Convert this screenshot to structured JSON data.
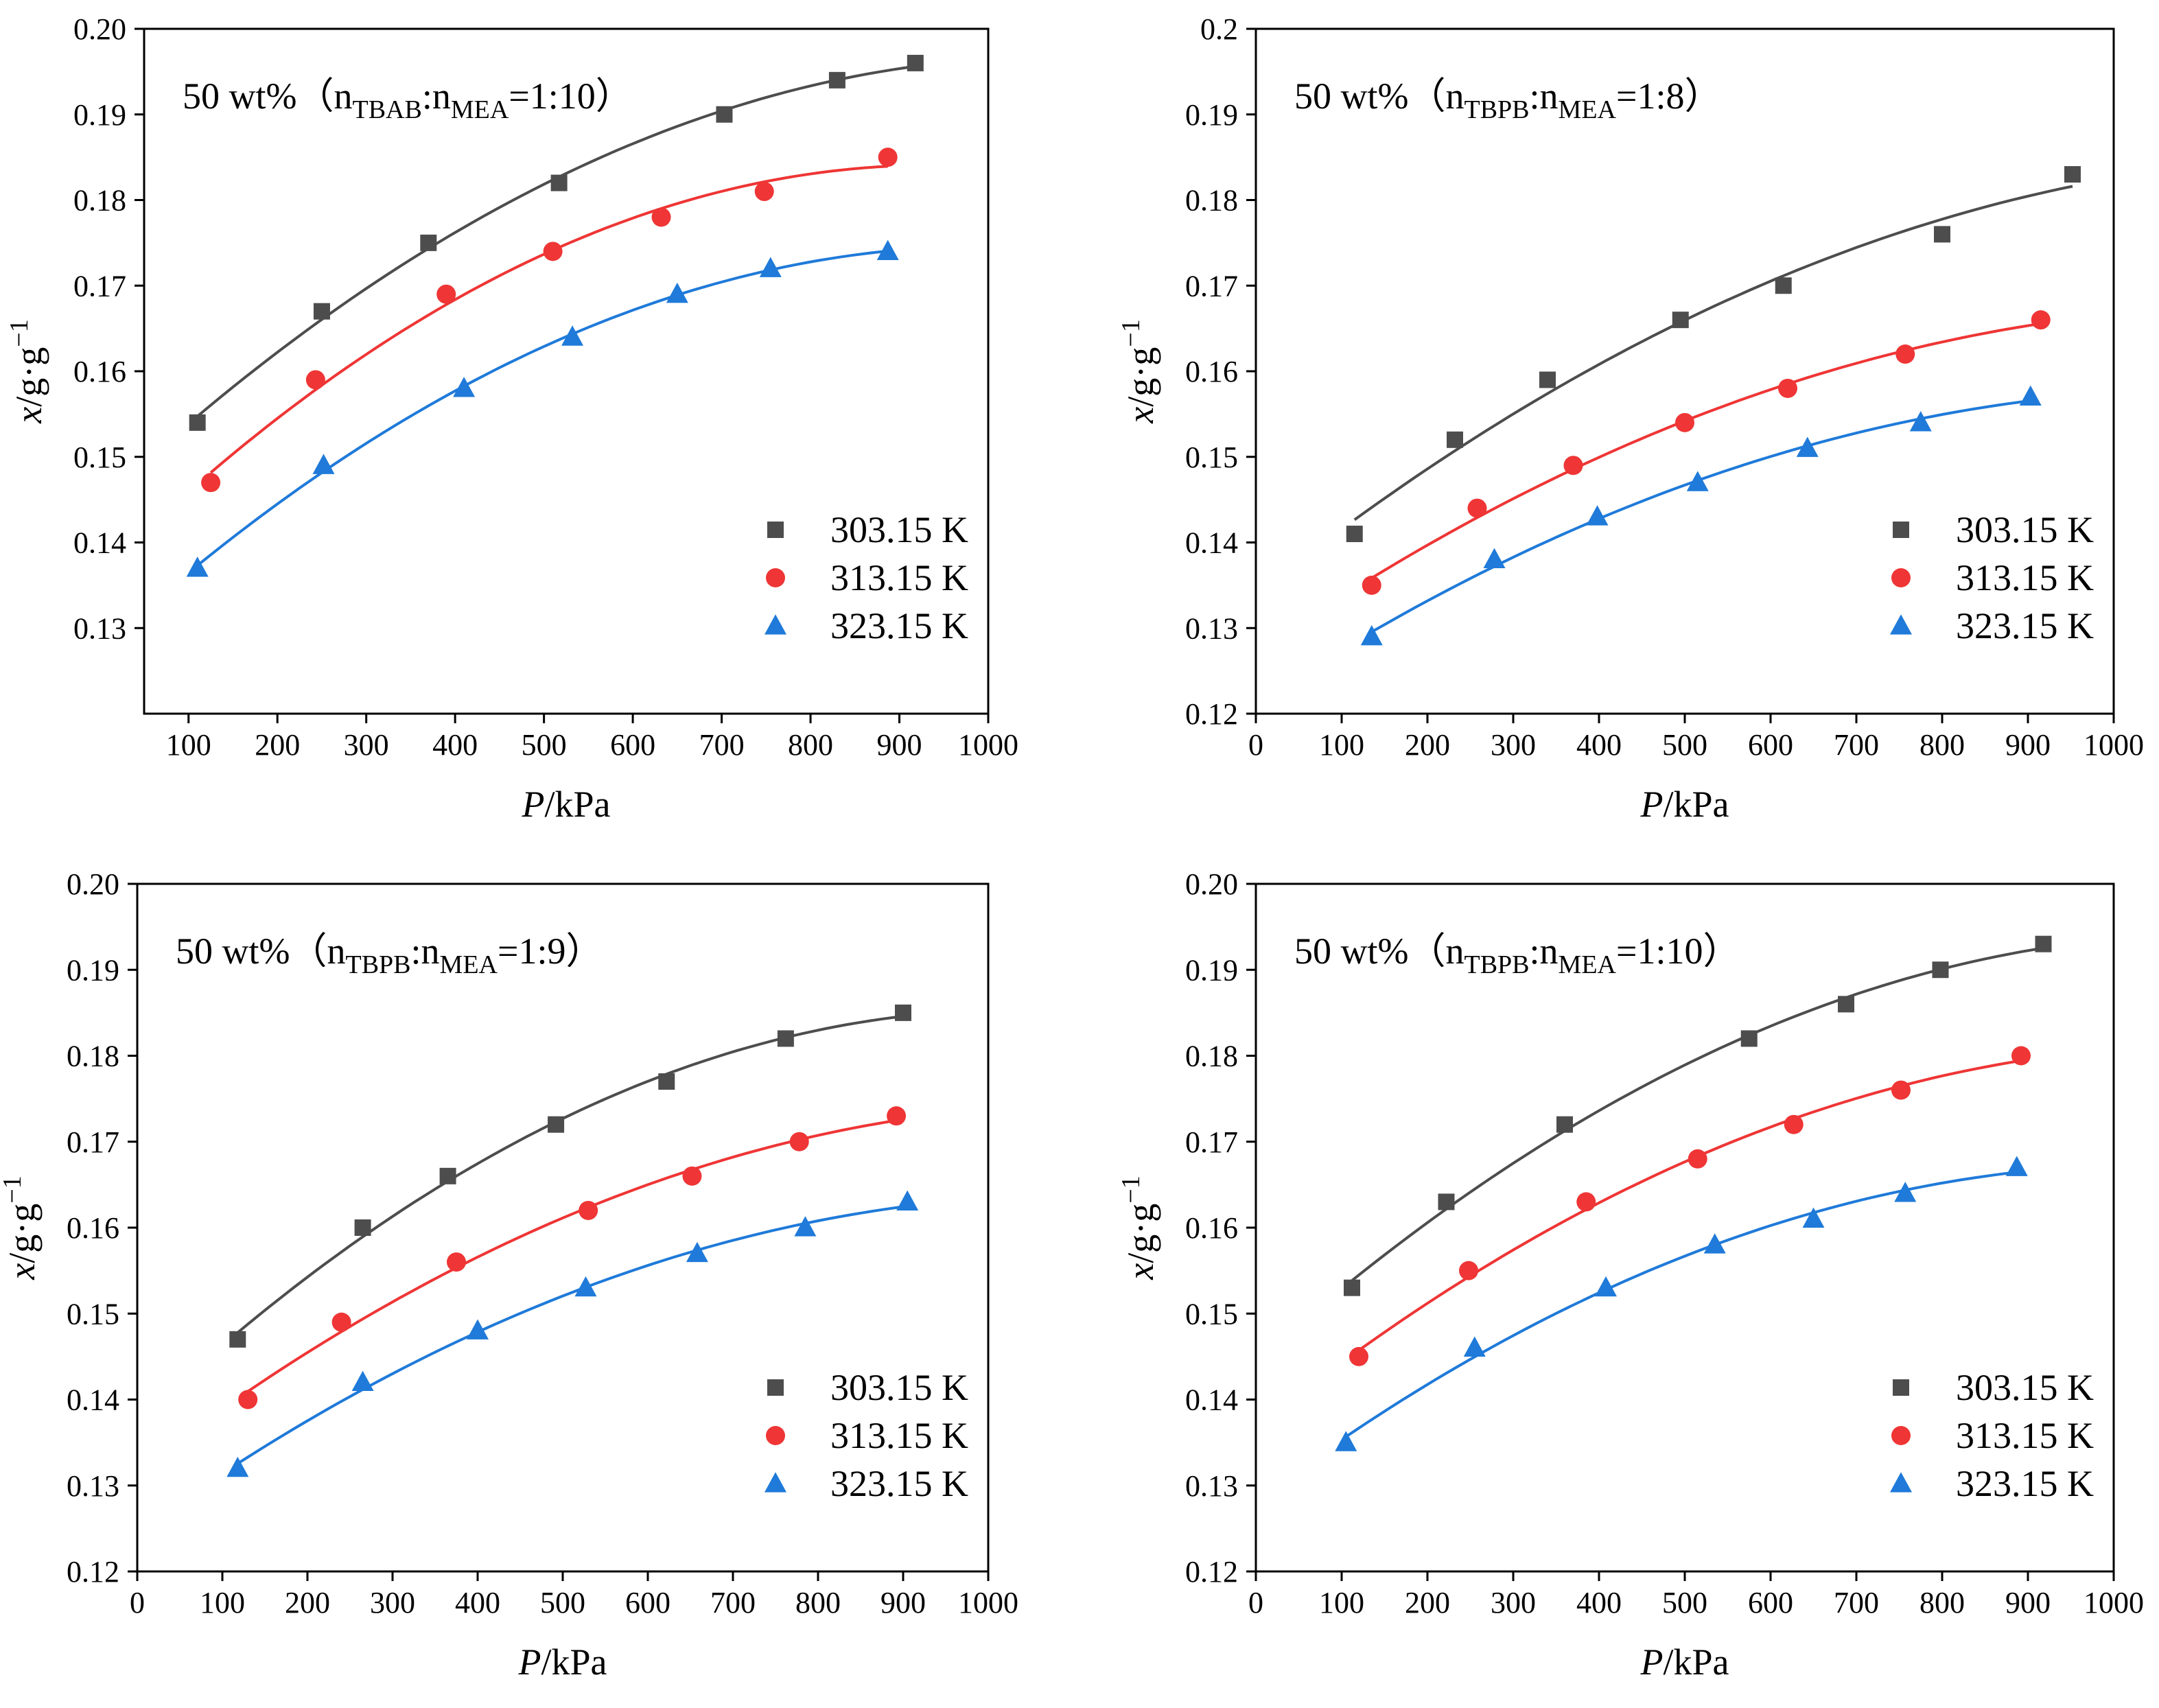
{
  "chart_data": [
    {
      "type": "scatter",
      "title": {
        "prefix": "50 wt%（n",
        "sub1": "TBAB",
        "mid": ":n",
        "sub2": "MEA",
        "suffix": "=1:10）"
      },
      "xlabel": {
        "var": "P",
        "unit": "/kPa"
      },
      "ylabel": {
        "var": "x",
        "unit": "/g·g",
        "sup": "−1"
      },
      "xlim": [
        50,
        1000
      ],
      "ylim": [
        0.12,
        0.2
      ],
      "xticks": [
        100,
        200,
        300,
        400,
        500,
        600,
        700,
        800,
        900,
        1000
      ],
      "yticks": [
        0.13,
        0.14,
        0.15,
        0.16,
        0.17,
        0.18,
        0.19,
        0.2
      ],
      "ytick_labels": [
        "0.13",
        "0.14",
        "0.15",
        "0.16",
        "0.17",
        "0.18",
        "0.19",
        "0.20"
      ],
      "legend_position": "bottom-right",
      "series": [
        {
          "name": "303.15 K",
          "marker": "square",
          "color": "#4d4d4d",
          "x": [
            110,
            250,
            370,
            517,
            703,
            830,
            918
          ],
          "y": [
            0.154,
            0.167,
            0.175,
            0.182,
            0.19,
            0.194,
            0.196
          ]
        },
        {
          "name": "313.15 K",
          "marker": "circle",
          "color": "#ef3535",
          "x": [
            125,
            243,
            390,
            510,
            632,
            748,
            887
          ],
          "y": [
            0.147,
            0.159,
            0.169,
            0.174,
            0.178,
            0.181,
            0.185
          ]
        },
        {
          "name": "323.15 K",
          "marker": "triangle",
          "color": "#1f7ad9",
          "x": [
            110,
            252,
            410,
            532,
            650,
            755,
            887
          ],
          "y": [
            0.137,
            0.149,
            0.158,
            0.164,
            0.169,
            0.172,
            0.174
          ]
        }
      ]
    },
    {
      "type": "scatter",
      "title": {
        "prefix": "50 wt%（n",
        "sub1": "TBPB",
        "mid": ":n",
        "sub2": "MEA",
        "suffix": "=1:8）"
      },
      "xlabel": {
        "var": "P",
        "unit": "/kPa"
      },
      "ylabel": {
        "var": "x",
        "unit": "/g·g",
        "sup": "−1"
      },
      "xlim": [
        0,
        1000
      ],
      "ylim": [
        0.12,
        0.2
      ],
      "xticks": [
        0,
        100,
        200,
        300,
        400,
        500,
        600,
        700,
        800,
        900,
        1000
      ],
      "yticks": [
        0.12,
        0.13,
        0.14,
        0.15,
        0.16,
        0.17,
        0.18,
        0.19,
        0.2
      ],
      "ytick_labels": [
        "0.12",
        "0.13",
        "0.14",
        "0.15",
        "0.16",
        "0.17",
        "0.18",
        "0.19",
        "0.2"
      ],
      "legend_position": "bottom-right",
      "series": [
        {
          "name": "303.15 K",
          "marker": "square",
          "color": "#4d4d4d",
          "x": [
            115,
            232,
            340,
            495,
            615,
            800,
            952
          ],
          "y": [
            0.141,
            0.152,
            0.159,
            0.166,
            0.17,
            0.176,
            0.183
          ]
        },
        {
          "name": "313.15 K",
          "marker": "circle",
          "color": "#ef3535",
          "x": [
            135,
            258,
            370,
            500,
            620,
            757,
            915
          ],
          "y": [
            0.135,
            0.144,
            0.149,
            0.154,
            0.158,
            0.162,
            0.166
          ]
        },
        {
          "name": "323.15 K",
          "marker": "triangle",
          "color": "#1f7ad9",
          "x": [
            135,
            278,
            398,
            515,
            643,
            775,
            903
          ],
          "y": [
            0.129,
            0.138,
            0.143,
            0.147,
            0.151,
            0.154,
            0.157
          ]
        }
      ]
    },
    {
      "type": "scatter",
      "title": {
        "prefix": "50 wt%（n",
        "sub1": "TBPB",
        "mid": ":n",
        "sub2": "MEA",
        "suffix": "=1:9）"
      },
      "xlabel": {
        "var": "P",
        "unit": "/kPa"
      },
      "ylabel": {
        "var": "x",
        "unit": "/g·g",
        "sup": "−1"
      },
      "xlim": [
        0,
        1000
      ],
      "ylim": [
        0.12,
        0.2
      ],
      "xticks": [
        0,
        100,
        200,
        300,
        400,
        500,
        600,
        700,
        800,
        900,
        1000
      ],
      "yticks": [
        0.12,
        0.13,
        0.14,
        0.15,
        0.16,
        0.17,
        0.18,
        0.19,
        0.2
      ],
      "ytick_labels": [
        "0.12",
        "0.13",
        "0.14",
        "0.15",
        "0.16",
        "0.17",
        "0.18",
        "0.19",
        "0.20"
      ],
      "legend_position": "bottom-right",
      "series": [
        {
          "name": "303.15 K",
          "marker": "square",
          "color": "#4d4d4d",
          "x": [
            118,
            265,
            365,
            492,
            622,
            762,
            900
          ],
          "y": [
            0.147,
            0.16,
            0.166,
            0.172,
            0.177,
            0.182,
            0.185
          ]
        },
        {
          "name": "313.15 K",
          "marker": "circle",
          "color": "#ef3535",
          "x": [
            130,
            240,
            375,
            530,
            652,
            778,
            892
          ],
          "y": [
            0.14,
            0.149,
            0.156,
            0.162,
            0.166,
            0.17,
            0.173
          ]
        },
        {
          "name": "323.15 K",
          "marker": "triangle",
          "color": "#1f7ad9",
          "x": [
            118,
            265,
            400,
            527,
            658,
            785,
            905
          ],
          "y": [
            0.132,
            0.142,
            0.148,
            0.153,
            0.157,
            0.16,
            0.163
          ]
        }
      ]
    },
    {
      "type": "scatter",
      "title": {
        "prefix": "50 wt%（n",
        "sub1": "TBPB",
        "mid": ":n",
        "sub2": "MEA",
        "suffix": "=1:10）"
      },
      "xlabel": {
        "var": "P",
        "unit": "/kPa"
      },
      "ylabel": {
        "var": "x",
        "unit": "/g·g",
        "sup": "−1"
      },
      "xlim": [
        0,
        1000
      ],
      "ylim": [
        0.12,
        0.2
      ],
      "xticks": [
        0,
        100,
        200,
        300,
        400,
        500,
        600,
        700,
        800,
        900,
        1000
      ],
      "yticks": [
        0.12,
        0.13,
        0.14,
        0.15,
        0.16,
        0.17,
        0.18,
        0.19,
        0.2
      ],
      "ytick_labels": [
        "0.12",
        "0.13",
        "0.14",
        "0.15",
        "0.16",
        "0.17",
        "0.18",
        "0.19",
        "0.20"
      ],
      "legend_position": "bottom-right",
      "series": [
        {
          "name": "303.15 K",
          "marker": "square",
          "color": "#4d4d4d",
          "x": [
            112,
            222,
            360,
            575,
            688,
            798,
            918
          ],
          "y": [
            0.153,
            0.163,
            0.172,
            0.182,
            0.186,
            0.19,
            0.193
          ]
        },
        {
          "name": "313.15 K",
          "marker": "circle",
          "color": "#ef3535",
          "x": [
            120,
            248,
            385,
            515,
            627,
            752,
            892
          ],
          "y": [
            0.145,
            0.155,
            0.163,
            0.168,
            0.172,
            0.176,
            0.18
          ]
        },
        {
          "name": "323.15 K",
          "marker": "triangle",
          "color": "#1f7ad9",
          "x": [
            105,
            255,
            408,
            535,
            650,
            757,
            887
          ],
          "y": [
            0.135,
            0.146,
            0.153,
            0.158,
            0.161,
            0.164,
            0.167
          ]
        }
      ]
    }
  ]
}
